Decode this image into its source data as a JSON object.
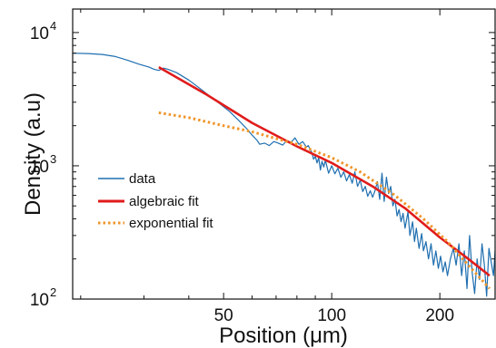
{
  "chart_data": {
    "type": "line",
    "xlabel": "Position (μm)",
    "ylabel": "Density (a.u)",
    "xscale": "log",
    "yscale": "log",
    "xlim": [
      19,
      285
    ],
    "ylim": [
      100,
      15000
    ],
    "xticks": [
      {
        "value": 50,
        "label": "50"
      },
      {
        "value": 100,
        "label": "100"
      },
      {
        "value": 200,
        "label": "200"
      }
    ],
    "yticks": [
      {
        "value": 100,
        "base": "10",
        "exp": "2"
      },
      {
        "value": 1000,
        "base": "10",
        "exp": "3"
      },
      {
        "value": 10000,
        "base": "10",
        "exp": "4"
      }
    ],
    "grid": false,
    "legend_position": "center-left",
    "series": [
      {
        "name": "data",
        "style": "solid",
        "color": "#1f6fb0",
        "points": [
          [
            19,
            7000
          ],
          [
            21,
            6950
          ],
          [
            23,
            6850
          ],
          [
            25,
            6600
          ],
          [
            27,
            6200
          ],
          [
            29,
            5800
          ],
          [
            31,
            5500
          ],
          [
            32,
            5300
          ],
          [
            33,
            5200
          ],
          [
            34,
            5400
          ],
          [
            35,
            5300
          ],
          [
            37,
            5000
          ],
          [
            40,
            4400
          ],
          [
            43,
            3800
          ],
          [
            46,
            3300
          ],
          [
            49,
            2900
          ],
          [
            52,
            2550
          ],
          [
            55,
            2200
          ],
          [
            58,
            1900
          ],
          [
            60,
            1700
          ],
          [
            62,
            1550
          ],
          [
            63,
            1450
          ],
          [
            65,
            1480
          ],
          [
            67,
            1420
          ],
          [
            69,
            1520
          ],
          [
            71,
            1480
          ],
          [
            73,
            1430
          ],
          [
            75,
            1550
          ],
          [
            77,
            1500
          ],
          [
            79,
            1620
          ],
          [
            81,
            1450
          ],
          [
            83,
            1520
          ],
          [
            85,
            1380
          ],
          [
            86,
            1420
          ],
          [
            88,
            1260
          ],
          [
            89,
            1120
          ],
          [
            90,
            1180
          ],
          [
            91,
            1050
          ],
          [
            92,
            1150
          ],
          [
            93,
            930
          ],
          [
            94,
            1080
          ],
          [
            95,
            980
          ],
          [
            96,
            1100
          ],
          [
            98,
            880
          ],
          [
            100,
            1000
          ],
          [
            102,
            870
          ],
          [
            104,
            960
          ],
          [
            106,
            820
          ],
          [
            108,
            900
          ],
          [
            110,
            770
          ],
          [
            112,
            860
          ],
          [
            114,
            740
          ],
          [
            116,
            900
          ],
          [
            118,
            700
          ],
          [
            120,
            780
          ],
          [
            122,
            640
          ],
          [
            124,
            700
          ],
          [
            126,
            590
          ],
          [
            128,
            650
          ],
          [
            130,
            580
          ],
          [
            132,
            650
          ],
          [
            134,
            760
          ],
          [
            136,
            560
          ],
          [
            138,
            880
          ],
          [
            140,
            540
          ],
          [
            142,
            820
          ],
          [
            144,
            620
          ],
          [
            146,
            700
          ],
          [
            148,
            500
          ],
          [
            150,
            560
          ],
          [
            152,
            420
          ],
          [
            154,
            470
          ],
          [
            156,
            380
          ],
          [
            158,
            440
          ],
          [
            160,
            340
          ],
          [
            163,
            450
          ],
          [
            165,
            300
          ],
          [
            168,
            380
          ],
          [
            170,
            270
          ],
          [
            172,
            340
          ],
          [
            175,
            240
          ],
          [
            178,
            310
          ],
          [
            180,
            230
          ],
          [
            183,
            270
          ],
          [
            186,
            200
          ],
          [
            189,
            260
          ],
          [
            192,
            180
          ],
          [
            195,
            230
          ],
          [
            198,
            170
          ],
          [
            201,
            210
          ],
          [
            204,
            160
          ],
          [
            207,
            190
          ],
          [
            210,
            150
          ],
          [
            214,
            200
          ],
          [
            218,
            240
          ],
          [
            222,
            180
          ],
          [
            226,
            260
          ],
          [
            230,
            150
          ],
          [
            234,
            230
          ],
          [
            238,
            120
          ],
          [
            242,
            300
          ],
          [
            246,
            160
          ],
          [
            250,
            110
          ],
          [
            254,
            200
          ],
          [
            258,
            140
          ],
          [
            262,
            260
          ],
          [
            266,
            180
          ],
          [
            270,
            105
          ],
          [
            274,
            240
          ],
          [
            278,
            190
          ],
          [
            282,
            150
          ],
          [
            285,
            230
          ]
        ]
      },
      {
        "name": "algebraic fit",
        "style": "solid",
        "color": "#e11b1b",
        "points": [
          [
            33,
            5500
          ],
          [
            45,
            3400
          ],
          [
            60,
            2100
          ],
          [
            80,
            1400
          ],
          [
            100,
            1050
          ],
          [
            130,
            700
          ],
          [
            160,
            480
          ],
          [
            200,
            290
          ],
          [
            240,
            200
          ],
          [
            275,
            150
          ]
        ]
      },
      {
        "name": "exponential fit",
        "style": "dotted",
        "color": "#f0952a",
        "points": [
          [
            33,
            2500
          ],
          [
            40,
            2300
          ],
          [
            50,
            2000
          ],
          [
            60,
            1800
          ],
          [
            70,
            1600
          ],
          [
            80,
            1450
          ],
          [
            100,
            1150
          ],
          [
            120,
            900
          ],
          [
            150,
            600
          ],
          [
            180,
            400
          ],
          [
            210,
            270
          ],
          [
            240,
            180
          ],
          [
            275,
            120
          ]
        ]
      }
    ]
  }
}
